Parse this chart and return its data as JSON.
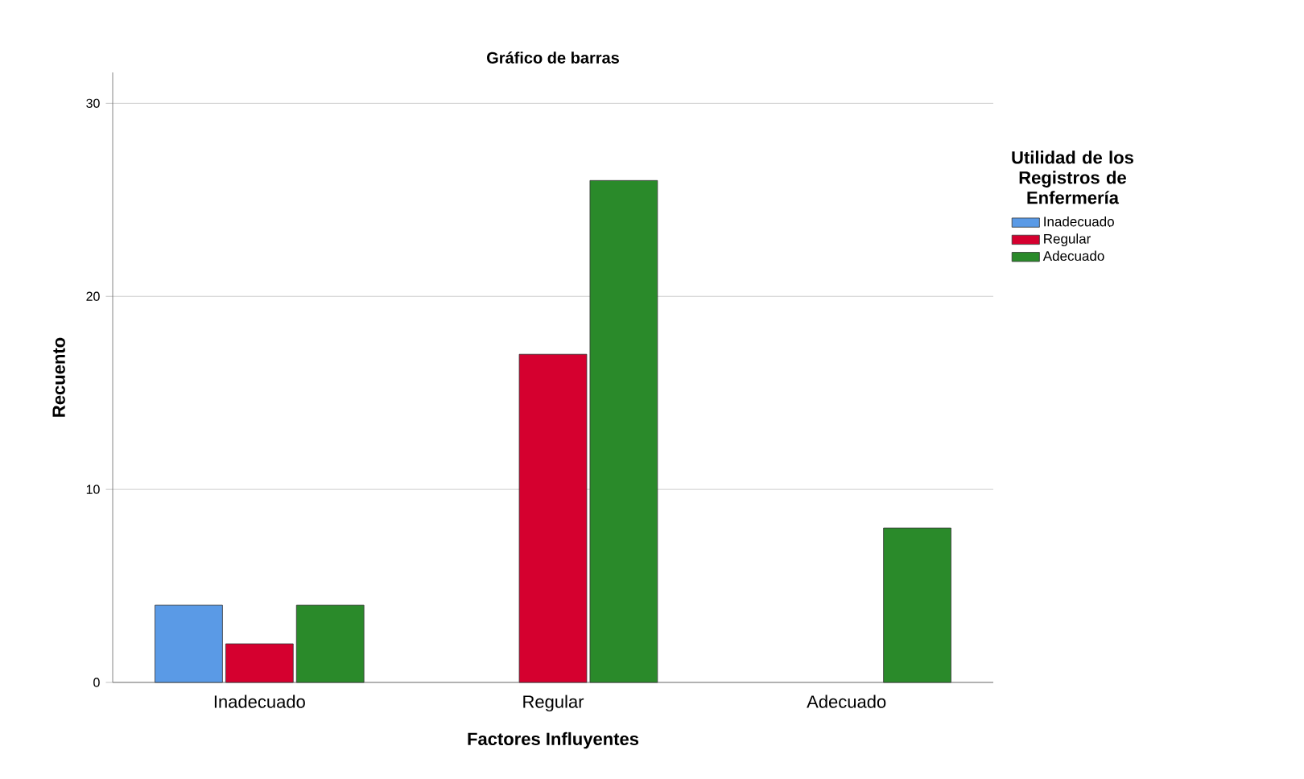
{
  "chart_data": {
    "type": "bar",
    "title": "Gráfico de barras",
    "xlabel": "Factores Influyentes",
    "ylabel": "Recuento",
    "legend_title": "Utilidad de los Registros de Enfermería",
    "categories": [
      "Inadecuado",
      "Regular",
      "Adecuado"
    ],
    "series": [
      {
        "name": "Inadecuado",
        "color": "#5a9ae6",
        "values": [
          4,
          null,
          null
        ]
      },
      {
        "name": "Regular",
        "color": "#d5002f",
        "values": [
          2,
          17,
          null
        ]
      },
      {
        "name": "Adecuado",
        "color": "#2a8a2a",
        "values": [
          4,
          26,
          8
        ]
      }
    ],
    "ylim": [
      0,
      31.6
    ],
    "yticks": [
      0,
      10,
      20,
      30
    ],
    "grid": "y",
    "legend": "right"
  }
}
